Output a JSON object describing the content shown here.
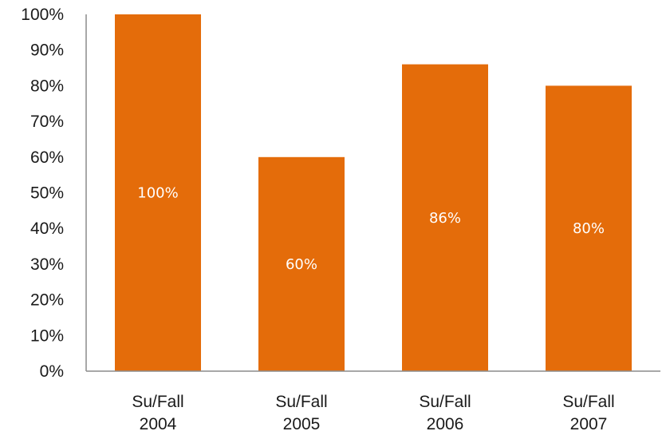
{
  "chart_data": {
    "type": "bar",
    "categories": [
      [
        "Su/Fall",
        "2004"
      ],
      [
        "Su/Fall",
        "2005"
      ],
      [
        "Su/Fall",
        "2006"
      ],
      [
        "Su/Fall",
        "2007"
      ]
    ],
    "values": [
      100,
      60,
      86,
      80
    ],
    "data_labels": [
      "100%",
      "60%",
      "86%",
      "80%"
    ],
    "y_ticks": [
      "0%",
      "10%",
      "20%",
      "30%",
      "40%",
      "50%",
      "60%",
      "70%",
      "80%",
      "90%",
      "100%"
    ],
    "ylim": [
      0,
      100
    ],
    "title": "",
    "xlabel": "",
    "ylabel": "",
    "grid": false,
    "legend": "none",
    "bar_color": "#e46c0a",
    "label_color": "#ffffff"
  }
}
